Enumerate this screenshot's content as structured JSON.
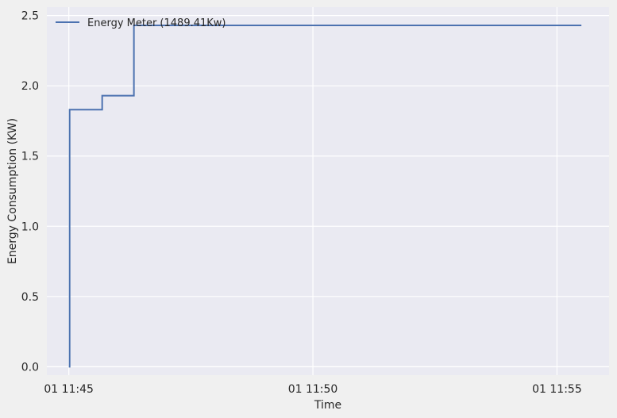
{
  "chart_data": {
    "type": "line",
    "title": "",
    "xlabel": "Time",
    "ylabel": "Energy Consumption (KW)",
    "x_tick_labels": [
      "01 11:45",
      "01 11:50",
      "01 11:55"
    ],
    "x_tick_values": [
      "11:45:00",
      "11:50:00",
      "11:55:00"
    ],
    "y_tick_labels": [
      "0.0",
      "0.5",
      "1.0",
      "1.5",
      "2.0",
      "2.5"
    ],
    "y_tick_values": [
      0.0,
      0.5,
      1.0,
      1.5,
      2.0,
      2.5
    ],
    "xlim": [
      "11:44:33",
      "11:56:04"
    ],
    "ylim": [
      -0.06,
      2.56
    ],
    "grid": true,
    "legend_position": "top-left",
    "series": [
      {
        "name": "Energy Meter (1489.41Kw)",
        "color": "#4c72b0",
        "step": true,
        "points": [
          {
            "time": "11:45:00",
            "value": 0.0
          },
          {
            "time": "11:45:01",
            "value": 1.83
          },
          {
            "time": "11:45:40",
            "value": 1.83
          },
          {
            "time": "11:45:41",
            "value": 1.93
          },
          {
            "time": "11:46:19",
            "value": 1.93
          },
          {
            "time": "11:46:20",
            "value": 2.43
          },
          {
            "time": "11:55:30",
            "value": 2.43
          }
        ]
      }
    ]
  }
}
